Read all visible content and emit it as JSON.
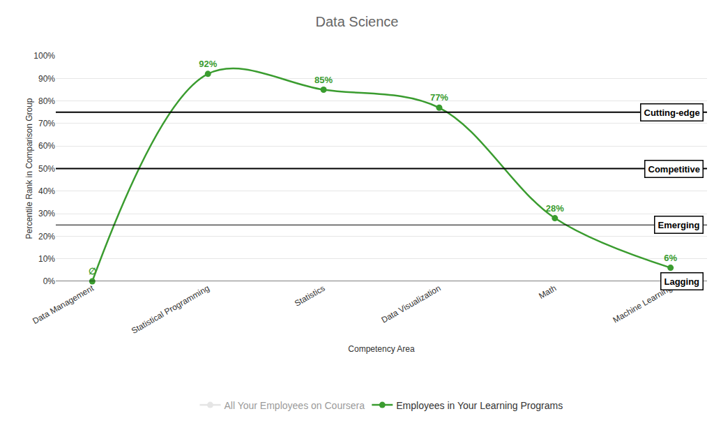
{
  "chart_data": {
    "type": "line",
    "title": "Data Science",
    "x_label": "Competency Area",
    "y_label": "Percentile Rank in Comparison Group",
    "categories": [
      "Data Management",
      "Statistical Programming",
      "Statistics",
      "Data Visualization",
      "Math",
      "Machine Learning"
    ],
    "series": [
      {
        "name": "All Your Employees on Coursera",
        "color": "#cccccc",
        "values": [
          null,
          null,
          null,
          null,
          null,
          null
        ]
      },
      {
        "name": "Employees in Your Learning Programs",
        "color": "#3a9c2f",
        "values": [
          0,
          92,
          85,
          77,
          28,
          6
        ],
        "value_labels": [
          "∅",
          "92%",
          "85%",
          "77%",
          "28%",
          "6%"
        ],
        "marker": "circle",
        "line_style": "spline"
      }
    ],
    "ylim": [
      0,
      100
    ],
    "yticks": [
      {
        "value": 0,
        "label": "0%"
      },
      {
        "value": 10,
        "label": "10%"
      },
      {
        "value": 20,
        "label": "20%"
      },
      {
        "value": 30,
        "label": "30%"
      },
      {
        "value": 40,
        "label": "40%"
      },
      {
        "value": 50,
        "label": "50%"
      },
      {
        "value": 60,
        "label": "60%"
      },
      {
        "value": 70,
        "label": "70%"
      },
      {
        "value": 80,
        "label": "80%"
      },
      {
        "value": 90,
        "label": "90%"
      },
      {
        "value": 100,
        "label": "100%"
      }
    ],
    "annotations": [
      {
        "y": 75,
        "text": "Cutting-edge"
      },
      {
        "y": 50,
        "text": "Competitive"
      },
      {
        "y": 25,
        "text": "Emerging"
      },
      {
        "y": 0,
        "text": "Lagging"
      }
    ],
    "grid": true,
    "data_labels": true,
    "legend": "bottom"
  }
}
